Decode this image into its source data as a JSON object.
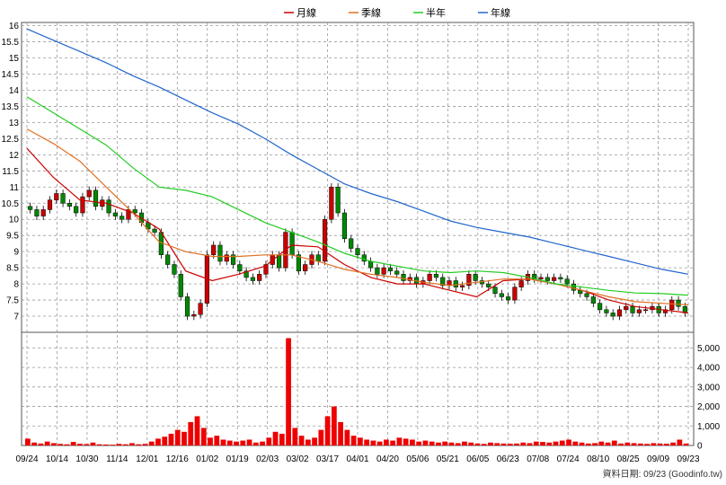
{
  "legend": [
    {
      "label": "月線",
      "color": "#cc0000"
    },
    {
      "label": "季線",
      "color": "#e07020"
    },
    {
      "label": "半年",
      "color": "#22cc22"
    },
    {
      "label": "年線",
      "color": "#2266cc"
    }
  ],
  "source_text": "資料日期: 09/23  (Goodinfo.tw)",
  "chart_data": [
    {
      "type": "line",
      "panel": "price",
      "x_tick_labels": [
        "09/24",
        "10/14",
        "10/30",
        "11/14",
        "12/01",
        "12/16",
        "01/02",
        "01/19",
        "02/03",
        "03/02",
        "03/17",
        "04/01",
        "04/20",
        "05/06",
        "05/21",
        "06/05",
        "06/23",
        "07/08",
        "07/24",
        "08/10",
        "08/25",
        "09/09",
        "09/23"
      ],
      "y_tick_labels": [
        "16",
        "15.5",
        "15",
        "14.5",
        "14",
        "13.5",
        "13",
        "12.5",
        "12",
        "11.5",
        "11",
        "10.5",
        "10",
        "9.5",
        "9",
        "8.5",
        "8",
        "7.5",
        "7"
      ],
      "ylim": [
        6.5,
        16.1
      ],
      "grid": true,
      "legend_position": "top",
      "x": [
        0,
        10,
        20,
        30,
        40,
        50,
        60,
        70,
        80,
        90,
        100,
        110,
        120,
        130,
        140,
        150,
        160,
        170,
        180,
        190,
        200,
        210,
        220,
        230,
        240,
        250
      ],
      "series": [
        {
          "name": "月線",
          "color": "#cc0000",
          "values": [
            12.2,
            11.3,
            10.6,
            10.5,
            10.2,
            9.7,
            8.4,
            8.1,
            8.3,
            8.55,
            9.2,
            9.15,
            8.6,
            8.2,
            8.0,
            8.0,
            7.8,
            7.6,
            8.1,
            8.15,
            8.0,
            7.8,
            7.5,
            7.3,
            7.2,
            7.1
          ]
        },
        {
          "name": "季線",
          "color": "#e07020",
          "values": [
            12.8,
            12.35,
            11.8,
            11.0,
            10.2,
            9.3,
            9.0,
            8.85,
            8.85,
            8.9,
            8.9,
            8.7,
            8.45,
            8.3,
            8.2,
            8.05,
            7.95,
            8.05,
            8.15,
            8.15,
            8.0,
            7.8,
            7.6,
            7.45,
            7.4,
            7.35
          ]
        },
        {
          "name": "半年",
          "color": "#22cc22",
          "values": [
            13.8,
            13.3,
            12.8,
            12.3,
            11.6,
            11.0,
            10.9,
            10.7,
            10.3,
            9.9,
            9.6,
            9.3,
            8.95,
            8.7,
            8.55,
            8.4,
            8.35,
            8.4,
            8.35,
            8.2,
            8.0,
            7.9,
            7.8,
            7.72,
            7.7,
            7.65
          ]
        },
        {
          "name": "年線",
          "color": "#2266cc",
          "values": [
            15.9,
            15.55,
            15.2,
            14.85,
            14.45,
            14.1,
            13.7,
            13.3,
            12.95,
            12.5,
            12.0,
            11.55,
            11.1,
            10.8,
            10.55,
            10.25,
            9.95,
            9.75,
            9.6,
            9.45,
            9.25,
            9.05,
            8.85,
            8.65,
            8.45,
            8.3
          ]
        }
      ],
      "price_series": [
        10.3,
        10.1,
        10.3,
        10.6,
        10.8,
        10.5,
        10.4,
        10.2,
        10.7,
        10.9,
        10.4,
        10.6,
        10.2,
        10.1,
        10.0,
        10.3,
        10.2,
        9.9,
        9.7,
        9.6,
        8.9,
        8.6,
        8.3,
        7.6,
        7.0,
        7.05,
        7.4,
        8.9,
        9.2,
        8.7,
        8.9,
        8.6,
        8.4,
        8.2,
        8.1,
        8.3,
        8.6,
        8.9,
        8.5,
        9.6,
        8.9,
        8.4,
        8.6,
        8.9,
        8.7,
        10.0,
        11.0,
        10.2,
        9.4,
        9.1,
        8.9,
        8.7,
        8.5,
        8.3,
        8.5,
        8.4,
        8.3,
        8.1,
        8.2,
        8.0,
        8.1,
        8.3,
        8.2,
        7.95,
        8.1,
        7.9,
        7.95,
        8.3,
        8.1,
        8.0,
        7.9,
        7.7,
        7.6,
        7.5,
        7.9,
        8.1,
        8.3,
        8.15,
        8.2,
        8.1,
        8.2,
        8.15,
        8.0,
        7.8,
        7.7,
        7.6,
        7.4,
        7.2,
        7.1,
        7.0,
        7.2,
        7.3,
        7.1,
        7.2,
        7.2,
        7.3,
        7.1,
        7.2,
        7.5,
        7.3,
        7.1
      ]
    },
    {
      "type": "bar",
      "panel": "volume",
      "y_tick_labels": [
        "0",
        "1,000",
        "2,000",
        "3,000",
        "4,000",
        "5,000"
      ],
      "ylim": [
        0,
        5800
      ],
      "grid": true,
      "color": "#ee0000",
      "values": [
        350,
        150,
        100,
        200,
        120,
        80,
        60,
        180,
        90,
        70,
        150,
        60,
        50,
        40,
        80,
        60,
        120,
        60,
        80,
        200,
        350,
        450,
        600,
        800,
        700,
        1200,
        1500,
        900,
        400,
        500,
        300,
        250,
        200,
        250,
        300,
        150,
        200,
        400,
        700,
        600,
        5500,
        900,
        500,
        300,
        400,
        800,
        1500,
        2000,
        1200,
        800,
        500,
        400,
        300,
        250,
        200,
        300,
        250,
        400,
        350,
        300,
        200,
        250,
        200,
        150,
        200,
        150,
        120,
        200,
        150,
        100,
        80,
        150,
        120,
        100,
        90,
        100,
        150,
        120,
        200,
        180,
        150,
        200,
        250,
        300,
        200,
        150,
        100,
        120,
        200,
        150,
        250,
        100,
        150,
        120,
        100,
        80,
        120,
        100,
        90,
        150,
        300,
        100
      ]
    }
  ]
}
